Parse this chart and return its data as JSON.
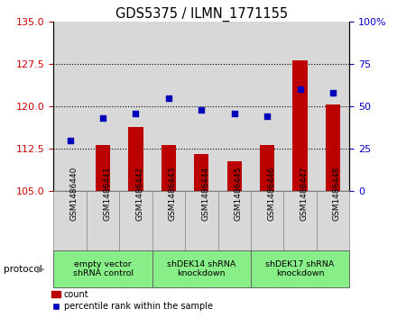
{
  "title": "GDS5375 / ILMN_1771155",
  "samples": [
    "GSM1486440",
    "GSM1486441",
    "GSM1486442",
    "GSM1486443",
    "GSM1486444",
    "GSM1486445",
    "GSM1486446",
    "GSM1486447",
    "GSM1486448"
  ],
  "counts": [
    105.05,
    113.1,
    116.3,
    113.2,
    111.6,
    110.3,
    113.2,
    128.1,
    120.3
  ],
  "percentiles": [
    30,
    43,
    46,
    55,
    48,
    46,
    44,
    60,
    58
  ],
  "ylim_left": [
    105,
    135
  ],
  "ylim_right": [
    0,
    100
  ],
  "yticks_left": [
    105,
    112.5,
    120,
    127.5,
    135
  ],
  "yticks_right": [
    0,
    25,
    50,
    75,
    100
  ],
  "bar_color": "#bb0000",
  "scatter_color": "#0000bb",
  "groups": [
    {
      "label": "empty vector\nshRNA control",
      "start": 0,
      "end": 3,
      "color": "#88ee88"
    },
    {
      "label": "shDEK14 shRNA\nknockdown",
      "start": 3,
      "end": 6,
      "color": "#88ee88"
    },
    {
      "label": "shDEK17 shRNA\nknockdown",
      "start": 6,
      "end": 9,
      "color": "#88ee88"
    }
  ],
  "protocol_label": "protocol",
  "legend_count_label": "count",
  "legend_percentile_label": "percentile rank within the sample",
  "background_color": "#ffffff",
  "col_bg_color": "#d8d8d8",
  "tick_label_color_left": "#cc0000",
  "tick_label_color_right": "#0000cc"
}
